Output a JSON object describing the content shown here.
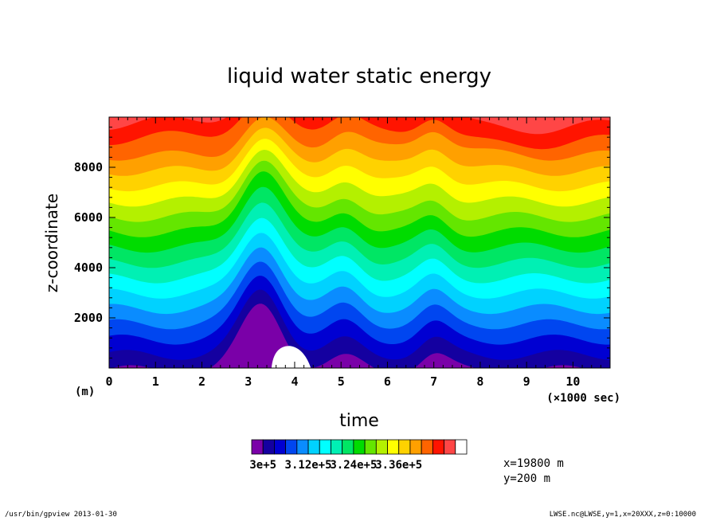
{
  "chart_data": {
    "type": "heatmap",
    "title": "liquid water static energy",
    "xlabel": "time",
    "x_unit": "(×1000 sec)",
    "ylabel": "z-coordinate",
    "y_unit": "(m)",
    "xlim": [
      0,
      10.8
    ],
    "ylim": [
      0,
      10000
    ],
    "x_ticks": [
      "0",
      "1",
      "2",
      "3",
      "4",
      "5",
      "6",
      "7",
      "8",
      "9",
      "10"
    ],
    "y_ticks": [
      "2000",
      "4000",
      "6000",
      "8000"
    ],
    "colorbar": {
      "colors": [
        "#7a00a8",
        "#1400a0",
        "#0000d2",
        "#0046f0",
        "#0a8cff",
        "#00d2ff",
        "#00ffff",
        "#00f0b4",
        "#00e664",
        "#00dc00",
        "#64e600",
        "#b4f000",
        "#ffff00",
        "#ffd200",
        "#ffa000",
        "#ff6400",
        "#ff1400",
        "#ff4646",
        "#ffffff"
      ],
      "tick_labels": [
        "3e+5",
        "3.12e+5",
        "3.24e+5",
        "3.36e+5"
      ]
    },
    "info_lines": [
      "x=19800 m",
      "y=200 m"
    ],
    "footer_left": "/usr/bin/gpview  2013-01-30",
    "footer_right": "LWSE.nc@LWSE,y=1,x=20XXX,z=0:10000"
  }
}
